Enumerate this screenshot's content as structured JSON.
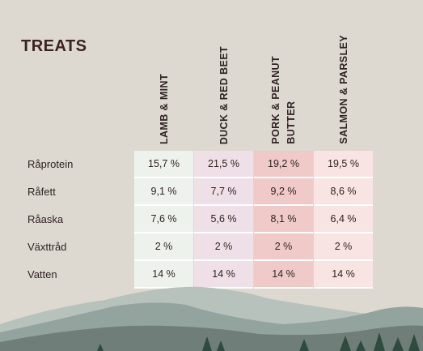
{
  "title": "TREATS",
  "columns": [
    {
      "label": "LAMB & MINT",
      "bg": "#eef2ed"
    },
    {
      "label": "DUCK & RED BEET",
      "bg": "#efdfe6"
    },
    {
      "label": "PORK &  PEANUT\nBUTTER",
      "bg": "#f0c9c9"
    },
    {
      "label": "SALMON & PARSLEY",
      "bg": "#f8e4e2"
    }
  ],
  "rows": [
    {
      "label": "Råprotein",
      "values": [
        "15,7 %",
        "21,5 %",
        "19,2 %",
        "19,5 %"
      ]
    },
    {
      "label": "Råfett",
      "values": [
        "9,1 %",
        "7,7 %",
        "9,2 %",
        "8,6 %"
      ]
    },
    {
      "label": "Råaska",
      "values": [
        "7,6 %",
        "5,6 %",
        "8,1 %",
        "6,4 %"
      ]
    },
    {
      "label": "Växttråd",
      "values": [
        "2 %",
        "2 %",
        "2 %",
        "2 %"
      ]
    },
    {
      "label": "Vatten",
      "values": [
        "14 %",
        "14 %",
        "14 %",
        "14 %"
      ]
    }
  ],
  "colors": {
    "background": "#ddd8d0",
    "mountain_back": "#b7c2bd",
    "mountain_mid": "#93a39d",
    "mountain_front": "#6f7e78",
    "trees": "#2f4a3f"
  }
}
